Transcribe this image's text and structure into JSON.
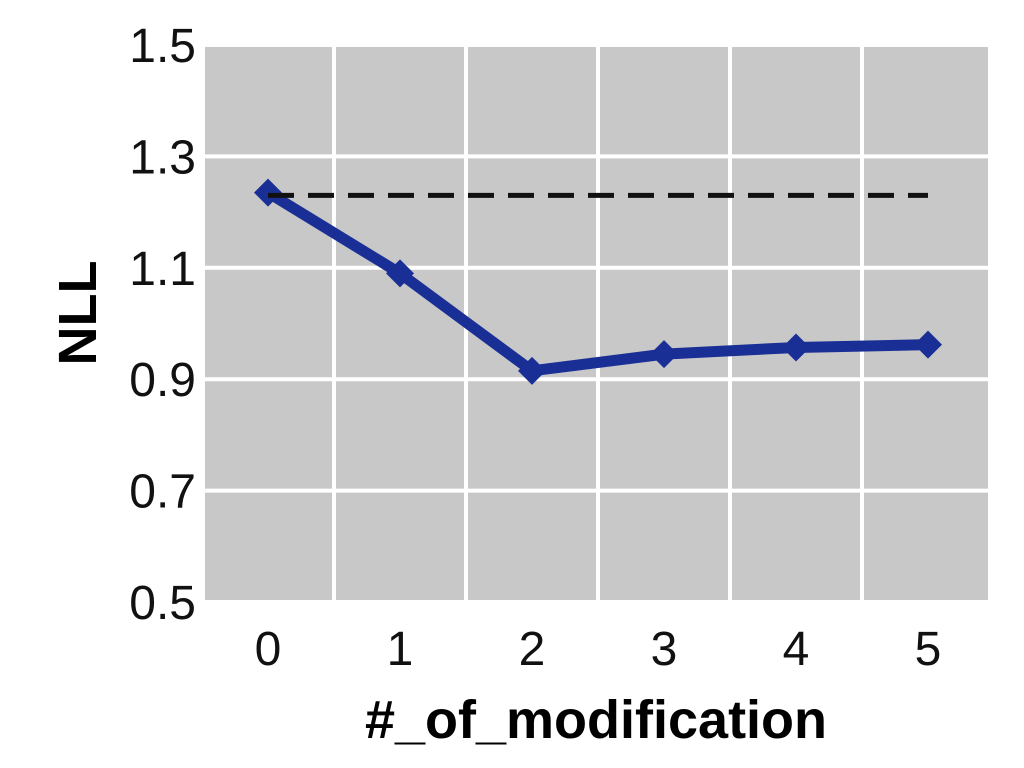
{
  "chart_data": {
    "type": "line",
    "title": "",
    "xlabel": "#_of_modification",
    "ylabel": "NLL",
    "categories": [
      "0",
      "1",
      "2",
      "3",
      "4",
      "5"
    ],
    "series": [
      {
        "values": [
          1.235,
          1.09,
          0.915,
          0.945,
          0.957,
          0.962
        ],
        "color": "#1a2f96",
        "style": "solid",
        "marker": "diamond"
      },
      {
        "values": [
          1.23,
          1.23,
          1.23,
          1.23,
          1.23,
          1.23
        ],
        "color": "#111111",
        "style": "dashed",
        "marker": "none"
      }
    ],
    "ylim": [
      0.5,
      1.5
    ],
    "yticks": [
      "0.5",
      "0.7",
      "0.9",
      "1.1",
      "1.3",
      "1.5"
    ],
    "grid": true,
    "background": "#c8c8c8",
    "grid_color": "#ffffff"
  }
}
